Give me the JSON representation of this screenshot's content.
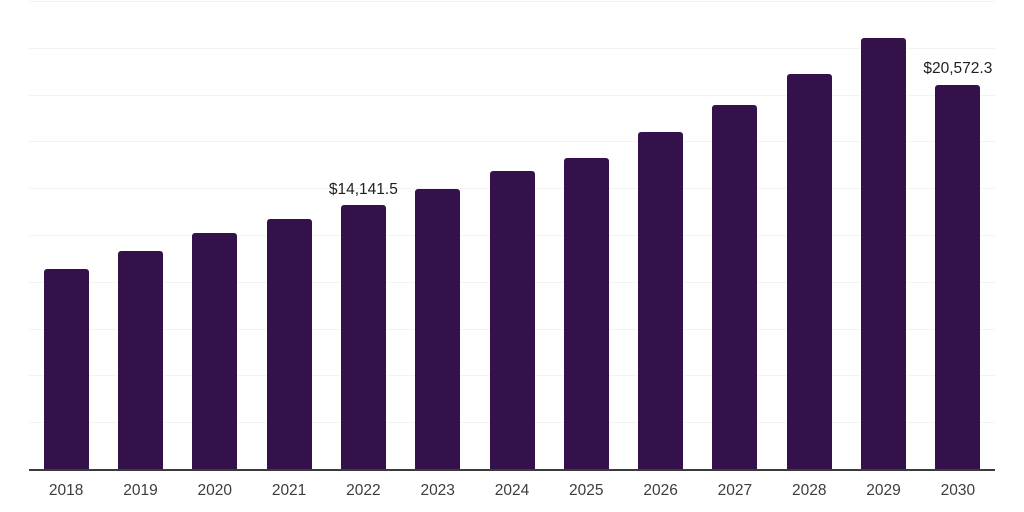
{
  "chart_data": {
    "type": "bar",
    "title": "",
    "xlabel": "",
    "ylabel": "",
    "categories": [
      "2018",
      "2019",
      "2020",
      "2021",
      "2022",
      "2023",
      "2024",
      "2025",
      "2026",
      "2027",
      "2028",
      "2029",
      "2030"
    ],
    "values": [
      10730,
      11690,
      12680,
      13400,
      14141.5,
      15020,
      15950,
      16670,
      18050,
      19490,
      21140,
      23060,
      20572.3
    ],
    "ylim": [
      0,
      25000
    ],
    "gridline_interval": 2500,
    "grid": true,
    "legend": false,
    "y_tick_labels_shown": false,
    "data_labels": {
      "2022": "$14,141.5",
      "2030": "$20,572.3"
    }
  },
  "style": {
    "bar_color": "#35114B",
    "gridline_color": "#f3f3f5",
    "axis_line_color": "#3b3b3b",
    "x_label_color": "#3d3d3d",
    "data_label_color": "#1f1f1f",
    "background_color": "#ffffff"
  }
}
